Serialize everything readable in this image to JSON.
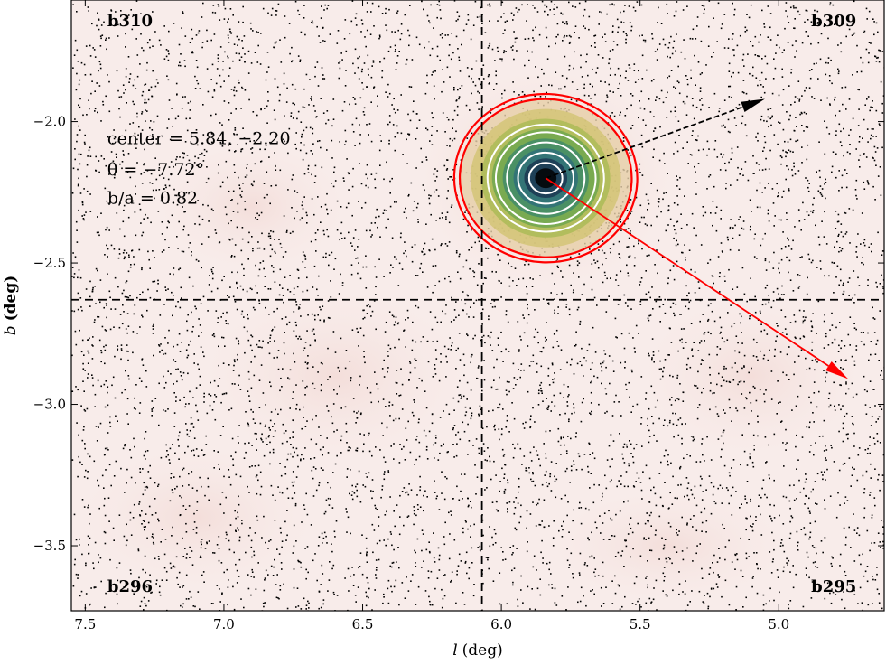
{
  "chart_data": {
    "type": "scatter",
    "title": "",
    "xlabel": {
      "var": "l",
      "unit": "(deg)"
    },
    "ylabel": {
      "var": "b",
      "unit": "(deg)"
    },
    "x_reversed": true,
    "xlim": [
      7.55,
      4.62
    ],
    "ylim": [
      -3.73,
      -1.57
    ],
    "xticks": [
      7.5,
      7.0,
      6.5,
      6.0,
      5.5,
      5.0
    ],
    "xtick_labels": [
      "7.5",
      "7.0",
      "6.5",
      "6.0",
      "5.5",
      "5.0"
    ],
    "yticks": [
      -2.0,
      -2.5,
      -3.0,
      -3.5
    ],
    "ytick_labels": [
      "−2.0",
      "−2.5",
      "−3.0",
      "−3.5"
    ],
    "field_labels": [
      {
        "text": "b310",
        "l": 7.42,
        "b": -1.65,
        "anchor": "start"
      },
      {
        "text": "b309",
        "l": 4.72,
        "b": -1.65,
        "anchor": "end"
      },
      {
        "text": "b296",
        "l": 7.42,
        "b": -3.65,
        "anchor": "start"
      },
      {
        "text": "b295",
        "l": 4.72,
        "b": -3.65,
        "anchor": "end"
      }
    ],
    "annotations": [
      {
        "text": "center = 5.84, −2.20",
        "l": 7.42,
        "b": -2.08
      },
      {
        "text": "θ = −7.72°",
        "l": 7.42,
        "b": -2.19
      },
      {
        "text": "b/a = 0.82",
        "l": 7.42,
        "b": -2.29
      }
    ],
    "dashed_lines": {
      "vertical_l": 6.07,
      "horizontal_b": -2.63
    },
    "ellipse": {
      "center_l": 5.84,
      "center_b": -2.2,
      "theta_deg": -7.72,
      "axis_ratio": 0.82
    },
    "contours": {
      "white_semimajor": [
        0.06,
        0.1,
        0.14,
        0.18,
        0.21
      ],
      "red_semimajor": [
        0.31,
        0.33
      ],
      "fill_colors": [
        "#000000",
        "#1a3550",
        "#2e6e7a",
        "#3f8a6a",
        "#6da64e",
        "#a9bb55",
        "#d3c574",
        "#e6cfaa"
      ]
    },
    "arrows": [
      {
        "color": "#000000",
        "from": [
          5.84,
          -2.2
        ],
        "to": [
          5.05,
          -1.92
        ],
        "style": "dashed"
      },
      {
        "color": "#ff0000",
        "from": [
          5.84,
          -2.2
        ],
        "to": [
          4.75,
          -2.91
        ],
        "style": "solid"
      }
    ],
    "background": {
      "color": "#f8ecea",
      "note_shade": "#f3dedb"
    },
    "scatter": {
      "point_color": "#000000",
      "n_background": 6500,
      "n_cluster": 1400,
      "cluster_sigma_deg": 0.11,
      "seed": 12345
    }
  }
}
